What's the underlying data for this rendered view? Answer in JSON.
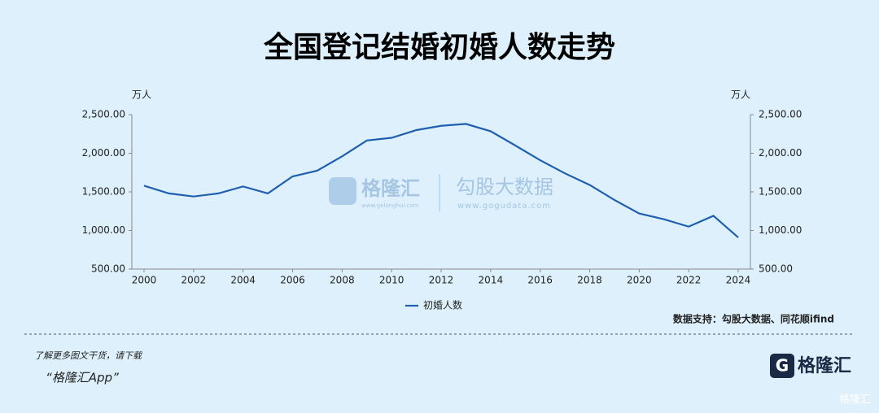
{
  "chart_data": {
    "type": "line",
    "title": "全国登记结婚初婚人数走势",
    "y_unit": "万人",
    "y2_unit": "万人",
    "x": [
      2000,
      2001,
      2002,
      2003,
      2004,
      2005,
      2006,
      2007,
      2008,
      2009,
      2010,
      2011,
      2012,
      2013,
      2014,
      2015,
      2016,
      2017,
      2018,
      2019,
      2020,
      2021,
      2022,
      2023,
      2024
    ],
    "xlim": [
      2000,
      2024
    ],
    "xticks": [
      2000,
      2002,
      2004,
      2006,
      2008,
      2010,
      2012,
      2014,
      2016,
      2018,
      2020,
      2022,
      2024
    ],
    "series": [
      {
        "name": "初婚人数",
        "color": "#1f5fae",
        "values": [
          1580,
          1480,
          1440,
          1480,
          1570,
          1480,
          1700,
          1775,
          1960,
          2165,
          2200,
          2300,
          2355,
          2380,
          2285,
          2100,
          1910,
          1740,
          1590,
          1395,
          1220,
          1145,
          1050,
          1190,
          910
        ]
      }
    ],
    "ylim": [
      500,
      2500
    ],
    "yticks": [
      {
        "value": 500,
        "label": "500.00"
      },
      {
        "value": 1000,
        "label": "1,000.00"
      },
      {
        "value": 1500,
        "label": "1,500.00"
      },
      {
        "value": 2000,
        "label": "2,000.00"
      },
      {
        "value": 2500,
        "label": "2,500.00"
      }
    ],
    "y2lim": [
      500,
      2500
    ],
    "y2ticks": [
      {
        "value": 500,
        "label": "500.00"
      },
      {
        "value": 1000,
        "label": "1,000.00"
      },
      {
        "value": 1500,
        "label": "1,500.00"
      },
      {
        "value": 2000,
        "label": "2,000.00"
      },
      {
        "value": 2500,
        "label": "2,500.00"
      }
    ],
    "grid": false,
    "legend": "bottom",
    "source": "数据支持：勾股大数据、同花顺ifind"
  },
  "watermark": {
    "brand": "格隆汇",
    "brand_url": "www.gelonghui.com",
    "partner": "勾股大数据",
    "partner_url": "www.gogudata.com"
  },
  "footer": {
    "note": "了解更多图文干货，请下载",
    "app": "“格隆汇App”",
    "logo": "格隆汇",
    "corner": "格隆汇"
  }
}
